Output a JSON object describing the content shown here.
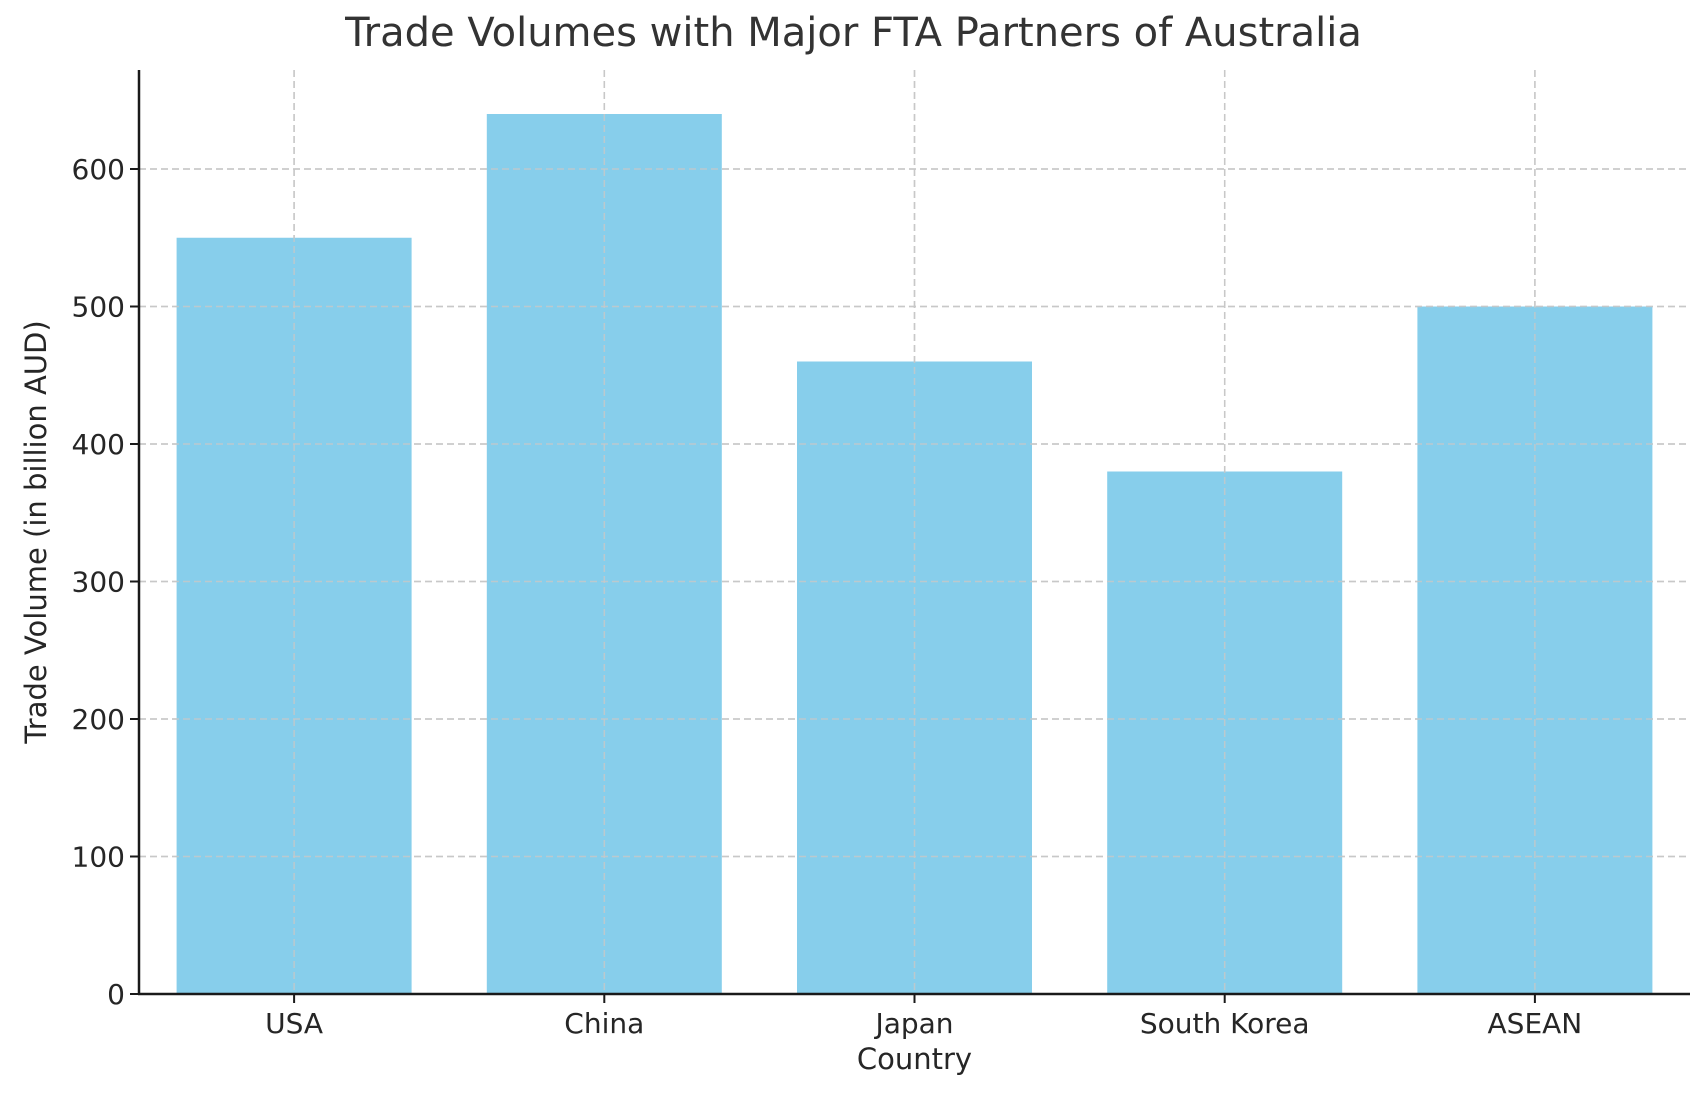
{
  "chart": {
    "title": "Trade Volumes with Major FTA Partners of Australia",
    "xlabel": "Country",
    "ylabel": "Trade Volume (in billion AUD)",
    "bar_color": "#87CEEB",
    "grid_color": "#c8c8c8",
    "axis_color": "#1a1a1a"
  },
  "chart_data": {
    "type": "bar",
    "title": "Trade Volumes with Major FTA Partners of Australia",
    "xlabel": "Country",
    "ylabel": "Trade Volume (in billion AUD)",
    "categories": [
      "USA",
      "China",
      "Japan",
      "South Korea",
      "ASEAN"
    ],
    "values": [
      550,
      640,
      460,
      380,
      500
    ],
    "ylim": [
      0,
      672
    ],
    "yticks": [
      0,
      100,
      200,
      300,
      400,
      500,
      600
    ],
    "grid": true,
    "grid_style": "dashed",
    "legend": null
  }
}
